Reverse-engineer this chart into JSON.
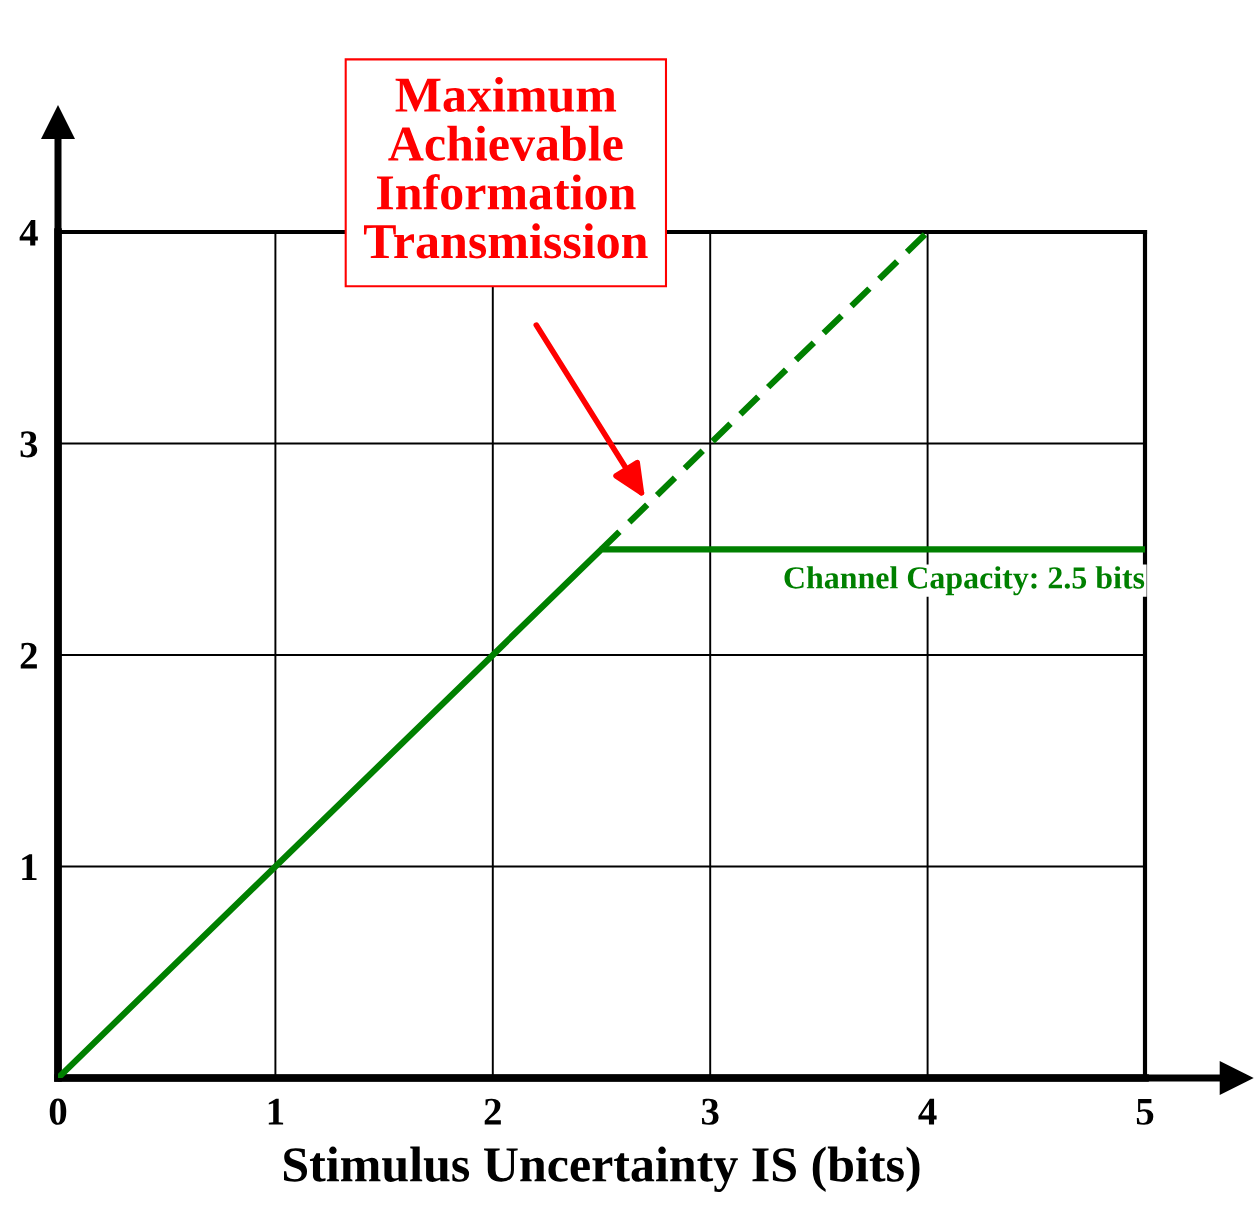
{
  "chart_data": {
    "type": "line",
    "xlabel": "Stimulus Uncertainty IS (bits)",
    "xlim": [
      0,
      5
    ],
    "ylim": [
      0,
      4
    ],
    "xticks": [
      0,
      1,
      2,
      3,
      4,
      5
    ],
    "yticks": [
      {
        "value": 0,
        "label": null
      },
      1,
      2,
      3,
      4
    ],
    "grid": true,
    "series": [
      {
        "name": "Channel Capacity: 2.5 bits",
        "color": "#008000",
        "x": [
          0,
          2.5,
          5
        ],
        "values": [
          0,
          2.5,
          2.5
        ],
        "line_style": "solid"
      },
      {
        "color": "#008000",
        "x": [
          2.5,
          4
        ],
        "values": [
          2.5,
          4
        ],
        "line_style": "dashed"
      }
    ],
    "annotations": [
      "Maximum\nAchievable\nInformation\nTransmission"
    ]
  }
}
